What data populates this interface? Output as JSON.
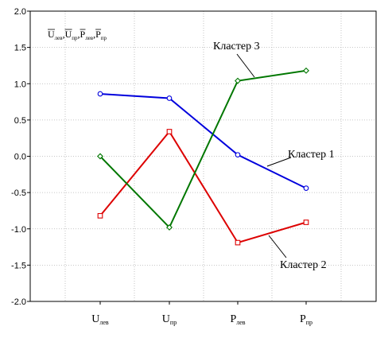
{
  "chart_data": {
    "type": "line",
    "title_parts": [
      {
        "main": "U",
        "sub": "лев",
        "sep": ","
      },
      {
        "main": "U",
        "sub": "пр",
        "sep": ","
      },
      {
        "main": "P",
        "sub": "лев",
        "sep": ","
      },
      {
        "main": "P",
        "sub": "пр",
        "sep": ""
      }
    ],
    "categories": [
      {
        "main": "U",
        "sub": "лев"
      },
      {
        "main": "U",
        "sub": "пр"
      },
      {
        "main": "P",
        "sub": "лев"
      },
      {
        "main": "P",
        "sub": "пр"
      }
    ],
    "ylim": [
      -2.0,
      2.0
    ],
    "yticks": [
      "2.0",
      "1.5",
      "1.0",
      "0.5",
      "0.0",
      "-0.5",
      "-1.0",
      "-1.5",
      "-2.0"
    ],
    "ytick_values": [
      2.0,
      1.5,
      1.0,
      0.5,
      0.0,
      -0.5,
      -1.0,
      -1.5,
      -2.0
    ],
    "grid": true,
    "series": [
      {
        "name": "Кластер 1",
        "color": "#0000dd",
        "marker": "circle",
        "values": [
          0.86,
          0.8,
          0.02,
          -0.44
        ]
      },
      {
        "name": "Кластер 2",
        "color": "#dd0000",
        "marker": "square",
        "values": [
          -0.82,
          0.34,
          -1.19,
          -0.91
        ]
      },
      {
        "name": "Кластер 3",
        "color": "#007700",
        "marker": "diamond",
        "values": [
          0.0,
          -0.98,
          1.04,
          1.18
        ]
      }
    ]
  }
}
